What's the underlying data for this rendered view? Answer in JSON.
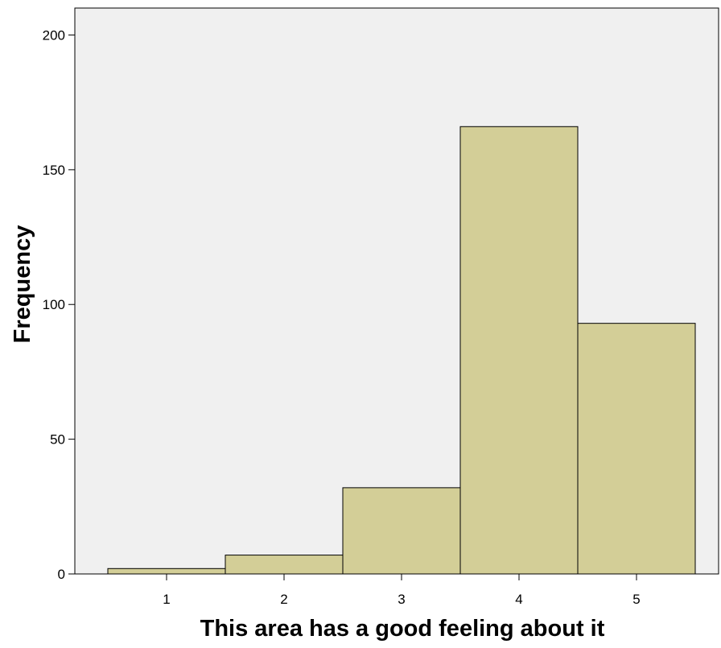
{
  "chart_data": {
    "type": "bar",
    "xlabel": "This area has a good feeling about it",
    "ylabel": "Frequency",
    "categories": [
      "1",
      "2",
      "3",
      "4",
      "5"
    ],
    "values": [
      2,
      7,
      32,
      166,
      93
    ],
    "yticks": [
      "0",
      "50",
      "100",
      "150",
      "200"
    ],
    "ylim": [
      0,
      210
    ],
    "grid": false,
    "legend": "none",
    "colors": {
      "plot_background": "#f0f0f0",
      "bar_fill": "#d3ce97",
      "bar_stroke": "#000000"
    }
  }
}
